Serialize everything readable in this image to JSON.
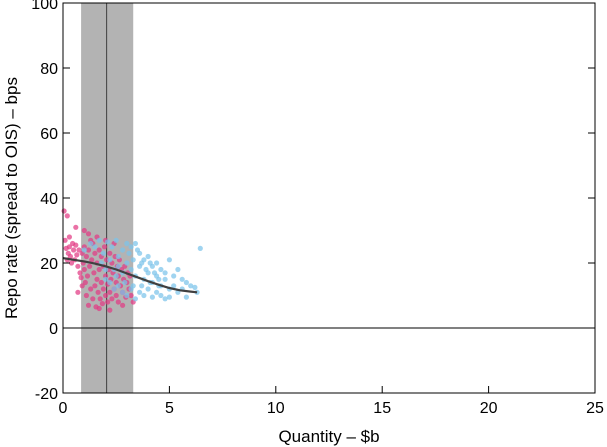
{
  "chart_data": {
    "type": "scatter",
    "title": "",
    "xlabel": "Quantity – $b",
    "ylabel": "Repo rate (spread to OIS) – bps",
    "xlim": [
      0,
      25
    ],
    "ylim": [
      -20,
      100
    ],
    "x_ticks": [
      0,
      5,
      10,
      15,
      20,
      25
    ],
    "y_ticks": [
      -20,
      0,
      20,
      40,
      60,
      80,
      100
    ],
    "x_tick_labels": [
      "0",
      "5",
      "10",
      "15",
      "20",
      "25"
    ],
    "y_tick_labels": [
      "-20",
      "0",
      "20",
      "40",
      "60",
      "80",
      "100"
    ],
    "grid": false,
    "zero_line": 0,
    "shaded_band": {
      "x_from": 0.85,
      "x_to": 3.3,
      "color": "#b3b3b3"
    },
    "vertical_line": {
      "x": 2.05,
      "color": "#404040"
    },
    "colors": {
      "pink": "#e23a83",
      "blue": "#7cc3ea",
      "fit": "#404040"
    },
    "series": [
      {
        "color": "#e23a83",
        "points": [
          [
            0.05,
            36
          ],
          [
            0.1,
            27
          ],
          [
            0.15,
            24.5
          ],
          [
            0.2,
            34.5
          ],
          [
            0.2,
            21
          ],
          [
            0.25,
            23
          ],
          [
            0.3,
            25
          ],
          [
            0.35,
            22
          ],
          [
            0.4,
            20
          ],
          [
            0.45,
            26
          ],
          [
            0.5,
            24
          ],
          [
            0.55,
            21
          ],
          [
            0.6,
            25.5
          ],
          [
            0.65,
            22.5
          ],
          [
            0.7,
            19
          ],
          [
            0.75,
            24
          ],
          [
            0.8,
            17
          ],
          [
            0.85,
            15.5
          ],
          [
            0.9,
            23
          ],
          [
            0.95,
            20
          ],
          [
            1.0,
            25
          ],
          [
            1.0,
            18
          ],
          [
            1.05,
            14
          ],
          [
            1.1,
            22
          ],
          [
            1.1,
            10
          ],
          [
            1.15,
            16
          ],
          [
            1.2,
            24
          ],
          [
            1.2,
            7
          ],
          [
            1.25,
            19
          ],
          [
            1.3,
            12
          ],
          [
            1.3,
            27
          ],
          [
            1.35,
            21
          ],
          [
            1.4,
            9
          ],
          [
            1.45,
            17
          ],
          [
            1.5,
            23
          ],
          [
            1.5,
            13
          ],
          [
            1.55,
            6.5
          ],
          [
            1.6,
            20
          ],
          [
            1.6,
            15
          ],
          [
            1.65,
            11
          ],
          [
            1.7,
            24
          ],
          [
            1.7,
            18
          ],
          [
            1.75,
            9
          ],
          [
            1.8,
            22
          ],
          [
            1.8,
            14
          ],
          [
            1.85,
            7.5
          ],
          [
            1.9,
            19
          ],
          [
            1.9,
            12
          ],
          [
            1.95,
            25
          ],
          [
            2.0,
            16
          ],
          [
            2.0,
            10
          ],
          [
            2.05,
            21
          ],
          [
            2.1,
            13.5
          ],
          [
            2.1,
            8
          ],
          [
            2.15,
            18
          ],
          [
            2.2,
            23
          ],
          [
            2.2,
            11
          ],
          [
            2.25,
            15
          ],
          [
            2.3,
            20
          ],
          [
            2.3,
            9
          ],
          [
            2.35,
            17
          ],
          [
            2.4,
            12
          ],
          [
            2.45,
            22
          ],
          [
            2.5,
            14
          ],
          [
            2.5,
            10
          ],
          [
            2.55,
            19
          ],
          [
            2.6,
            16
          ],
          [
            2.6,
            8
          ],
          [
            2.65,
            21
          ],
          [
            2.7,
            13
          ],
          [
            2.75,
            18
          ],
          [
            2.8,
            11
          ],
          [
            2.85,
            15
          ],
          [
            2.9,
            19
          ],
          [
            2.95,
            9.5
          ],
          [
            3.0,
            14
          ],
          [
            3.05,
            17
          ],
          [
            3.1,
            12
          ],
          [
            3.15,
            16
          ],
          [
            3.2,
            10
          ],
          [
            1.0,
            30
          ],
          [
            1.2,
            29
          ],
          [
            0.6,
            31
          ],
          [
            1.6,
            28
          ],
          [
            2.0,
            27
          ],
          [
            0.3,
            28
          ],
          [
            2.4,
            26
          ],
          [
            1.4,
            26
          ],
          [
            0.9,
            13
          ],
          [
            0.7,
            11
          ],
          [
            1.7,
            6
          ],
          [
            2.8,
            7
          ],
          [
            3.3,
            8
          ],
          [
            2.2,
            5.5
          ]
        ]
      },
      {
        "color": "#7cc3ea",
        "points": [
          [
            1.0,
            24
          ],
          [
            1.3,
            26
          ],
          [
            1.5,
            25
          ],
          [
            1.7,
            27
          ],
          [
            1.9,
            23
          ],
          [
            2.1,
            26.5
          ],
          [
            2.3,
            25
          ],
          [
            2.5,
            27
          ],
          [
            2.6,
            22
          ],
          [
            2.8,
            24
          ],
          [
            3.0,
            26
          ],
          [
            3.2,
            25
          ],
          [
            3.4,
            26
          ],
          [
            3.6,
            23
          ],
          [
            3.8,
            21
          ],
          [
            4.0,
            22
          ],
          [
            4.2,
            19
          ],
          [
            4.4,
            20
          ],
          [
            4.6,
            18
          ],
          [
            4.8,
            17
          ],
          [
            5.0,
            21
          ],
          [
            5.2,
            16
          ],
          [
            5.4,
            18
          ],
          [
            5.6,
            15
          ],
          [
            5.8,
            14
          ],
          [
            6.0,
            13
          ],
          [
            6.2,
            12.5
          ],
          [
            6.45,
            24.5
          ],
          [
            6.3,
            11
          ],
          [
            2.2,
            21
          ],
          [
            2.4,
            18
          ],
          [
            2.6,
            19
          ],
          [
            2.8,
            17
          ],
          [
            3.0,
            20
          ],
          [
            3.2,
            18
          ],
          [
            3.4,
            16
          ],
          [
            3.6,
            19
          ],
          [
            3.8,
            15
          ],
          [
            4.0,
            17
          ],
          [
            4.2,
            14
          ],
          [
            4.4,
            16
          ],
          [
            4.6,
            13
          ],
          [
            4.8,
            15
          ],
          [
            5.0,
            12
          ],
          [
            5.2,
            13
          ],
          [
            5.4,
            11
          ],
          [
            5.6,
            12
          ],
          [
            5.8,
            9.5
          ],
          [
            2.0,
            15
          ],
          [
            2.2,
            14
          ],
          [
            2.4,
            12
          ],
          [
            2.6,
            13
          ],
          [
            2.8,
            11
          ],
          [
            3.0,
            10
          ],
          [
            3.2,
            12
          ],
          [
            3.4,
            9
          ],
          [
            3.6,
            11
          ],
          [
            3.8,
            10
          ],
          [
            4.0,
            12
          ],
          [
            4.2,
            9.5
          ],
          [
            4.4,
            11
          ],
          [
            4.6,
            10
          ],
          [
            4.8,
            9
          ],
          [
            5.0,
            9.5
          ],
          [
            3.1,
            23
          ],
          [
            3.3,
            21
          ],
          [
            3.5,
            24
          ],
          [
            3.7,
            20
          ],
          [
            3.9,
            18
          ],
          [
            4.1,
            20
          ],
          [
            4.3,
            17
          ],
          [
            4.5,
            15
          ],
          [
            1.8,
            20
          ],
          [
            2.0,
            18
          ],
          [
            2.5,
            16
          ],
          [
            2.9,
            14
          ],
          [
            3.3,
            13
          ],
          [
            3.7,
            13
          ],
          [
            4.1,
            14
          ],
          [
            4.5,
            13
          ]
        ]
      }
    ],
    "fit_line": [
      [
        0.0,
        21.5
      ],
      [
        0.5,
        21.0
      ],
      [
        1.0,
        20.5
      ],
      [
        1.5,
        19.8
      ],
      [
        2.0,
        19.0
      ],
      [
        2.5,
        18.0
      ],
      [
        3.0,
        16.8
      ],
      [
        3.5,
        15.6
      ],
      [
        4.0,
        14.4
      ],
      [
        4.5,
        13.3
      ],
      [
        5.0,
        12.3
      ],
      [
        5.5,
        11.6
      ],
      [
        6.0,
        11.2
      ],
      [
        6.3,
        11.0
      ]
    ]
  }
}
